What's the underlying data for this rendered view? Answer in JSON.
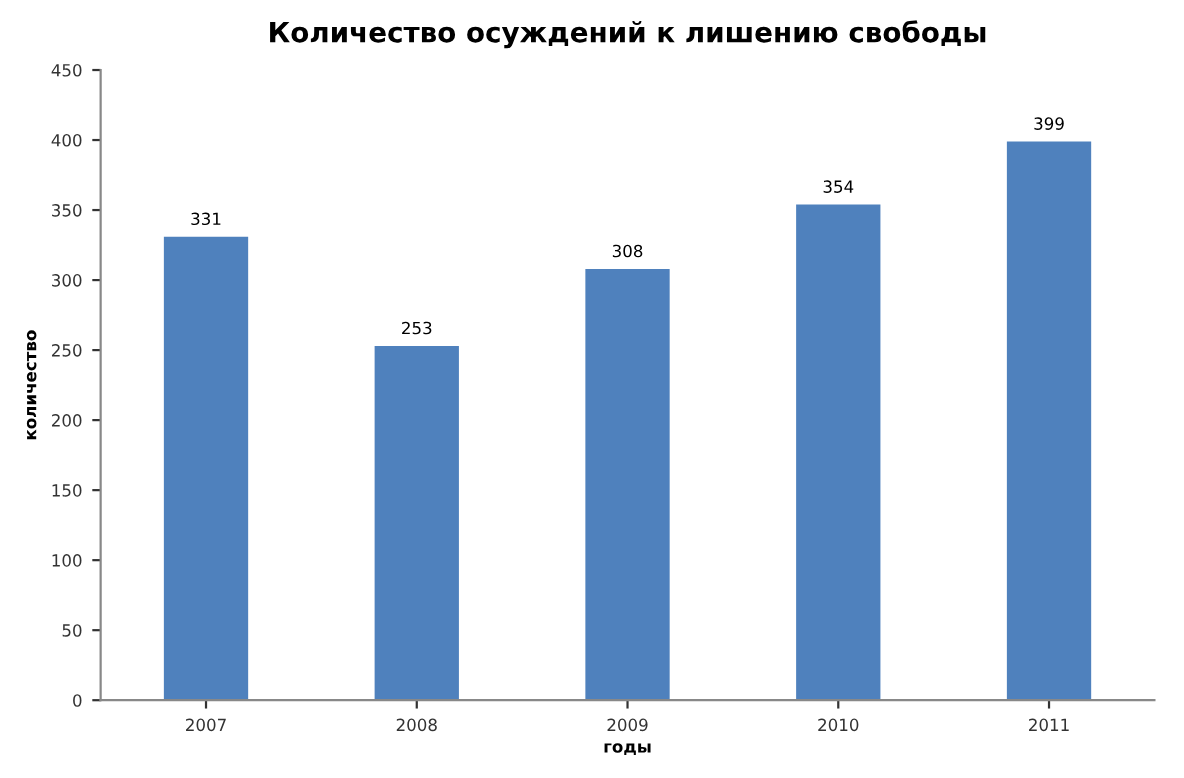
{
  "chart_data": {
    "type": "bar",
    "title": "Количество осуждений к лишению свободы",
    "xlabel": "годы",
    "ylabel": "количество",
    "categories": [
      "2007",
      "2008",
      "2009",
      "2010",
      "2011"
    ],
    "values": [
      331,
      253,
      308,
      354,
      399
    ],
    "color": "#4f81bd",
    "ylim": [
      0,
      450
    ],
    "yticks": [
      0,
      50,
      100,
      150,
      200,
      250,
      300,
      350,
      400,
      450
    ],
    "grid": false,
    "data_labels": true
  }
}
